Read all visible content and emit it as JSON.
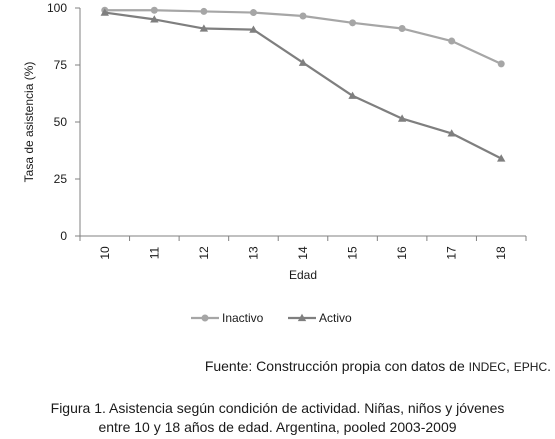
{
  "chart_data": {
    "type": "line",
    "categories": [
      "10",
      "11",
      "12",
      "13",
      "14",
      "15",
      "16",
      "17",
      "18"
    ],
    "series": [
      {
        "name": "Inactivo",
        "color": "#a6a6a6",
        "marker": "circle",
        "values": [
          99,
          99,
          98.5,
          98,
          96.5,
          93.5,
          91,
          85.5,
          75.5
        ]
      },
      {
        "name": "Activo",
        "color": "#7f7f7f",
        "marker": "triangle",
        "values": [
          98,
          95,
          91,
          90.5,
          76,
          61.5,
          51.5,
          45,
          34
        ]
      }
    ],
    "xlabel": "Edad",
    "ylabel": "Tasa de asistencia (%)",
    "ylim": [
      0,
      100
    ],
    "yticks": [
      "0",
      "25",
      "50",
      "75",
      "100"
    ],
    "grid": false,
    "legend": "bottom"
  },
  "source": {
    "prefix": "Fuente: Construcción propia con datos de ",
    "org1": "INDEC",
    "sep": ", ",
    "org2": "EPHC",
    "suffix": "."
  },
  "caption": {
    "line1": "Figura 1. Asistencia según condición de actividad. Niñas, niños y jóvenes",
    "line2": "entre 10 y 18 años de edad. Argentina, pooled 2003-2009"
  }
}
